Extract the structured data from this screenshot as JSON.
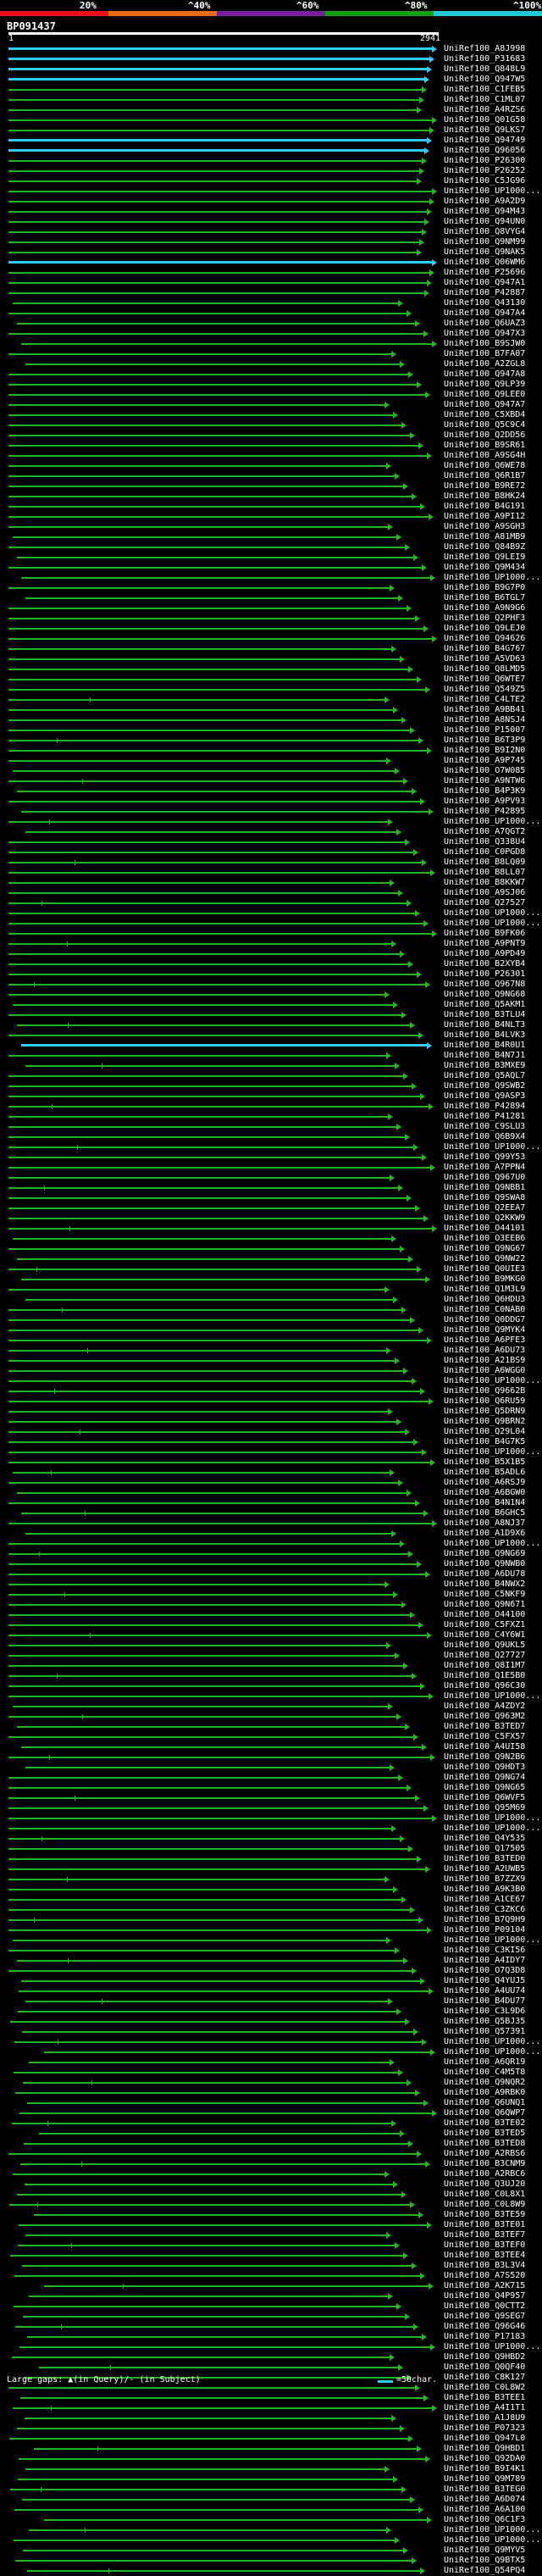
{
  "legend": {
    "labels": [
      "20%",
      "^40%",
      "^60%",
      "^80%",
      "^100%"
    ],
    "colors": [
      "#e8101a",
      "#e8700a",
      "#7a1fa0",
      "#15a015",
      "#22c8d8"
    ]
  },
  "query": {
    "id": "BP091437",
    "start": "1",
    "end": "2941"
  },
  "hits": [
    "UniRef100_A8J998",
    "UniRef100_P31683",
    "UniRef100_Q848L9",
    "UniRef100_Q947W5",
    "UniRef100_C1FEB5",
    "UniRef100_C1ML07",
    "UniRef100_A4RZS6",
    "UniRef100_Q01G58",
    "UniRef100_Q9LKS7",
    "UniRef100_Q94749",
    "UniRef100_Q96056",
    "UniRef100_P26300",
    "UniRef100_P26252",
    "UniRef100_C5JG96",
    "UniRef100_UP1000...",
    "UniRef100_A9A2D9",
    "UniRef100_Q94M43",
    "UniRef100_Q94UN0",
    "UniRef100_Q8VYG4",
    "UniRef100_Q9NM99",
    "UniRef100_Q9NAK5",
    "UniRef100_Q06WM6",
    "UniRef100_P25696",
    "UniRef100_Q947A1",
    "UniRef100_P42887",
    "UniRef100_Q43130",
    "UniRef100_Q947A4",
    "UniRef100_Q6UAZ3",
    "UniRef100_Q947X3",
    "UniRef100_B9SJW0",
    "UniRef100_B7FA07",
    "UniRef100_A2ZGL8",
    "UniRef100_Q947A8",
    "UniRef100_Q9LP39",
    "UniRef100_Q9LEE0",
    "UniRef100_Q947A7",
    "UniRef100_C5XBD4",
    "UniRef100_Q5C9C4",
    "UniRef100_Q2DD56",
    "UniRef100_B9SR61",
    "UniRef100_A9SG4H",
    "UniRef100_Q6WE78",
    "UniRef100_Q6R1B7",
    "UniRef100_B9RE72",
    "UniRef100_B8HK24",
    "UniRef100_B4G191",
    "UniRef100_A9PI12",
    "UniRef100_A9SGH3",
    "UniRef100_A81MB9",
    "UniRef100_Q84B9Z",
    "UniRef100_Q9LEI9",
    "UniRef100_Q9M434",
    "UniRef100_UP1000...",
    "UniRef100_B9G7P0",
    "UniRef100_B6TGL7",
    "UniRef100_A9N9G6",
    "UniRef100_Q2PHF3",
    "UniRef100_Q9LEJ0",
    "UniRef100_Q94626",
    "UniRef100_B4G767",
    "UniRef100_A5VD63",
    "UniRef100_Q8LMD5",
    "UniRef100_Q6WTE7",
    "UniRef100_Q549Z5",
    "UniRef100_C4LTE2",
    "UniRef100_A9BB41",
    "UniRef100_A8NSJ4",
    "UniRef100_P15007",
    "UniRef100_B6T3P9",
    "UniRef100_B9I2N0",
    "UniRef100_A9P745",
    "UniRef100_O7W085",
    "UniRef100_A9NTW6",
    "UniRef100_B4P3K9",
    "UniRef100_A9PV93",
    "UniRef100_P42895",
    "UniRef100_UP1000...",
    "UniRef100_A7QGT2",
    "UniRef100_Q338U4",
    "UniRef100_C0PGD8",
    "UniRef100_B8LQ09",
    "UniRef100_B8LL07",
    "UniRef100_B8KKW7",
    "UniRef100_A9SJ06",
    "UniRef100_Q27527",
    "UniRef100_UP1000...",
    "UniRef100_UP1000...",
    "UniRef100_B9FK06",
    "UniRef100_A9PNT9",
    "UniRef100_A9PD49",
    "UniRef100_B2XYB4",
    "UniRef100_P26301",
    "UniRef100_Q967N8",
    "UniRef100_Q9NG68",
    "UniRef100_Q5AKM1",
    "UniRef100_B3TLU4",
    "UniRef100_B4NLT3",
    "UniRef100_B4LVK3",
    "UniRef100_B4R0U1",
    "UniRef100_B4N7J1",
    "UniRef100_B3MXE9",
    "UniRef100_Q5AQL7",
    "UniRef100_Q9SWB2",
    "UniRef100_Q9ASP3",
    "UniRef100_P42894",
    "UniRef100_P41281",
    "UniRef100_C9SLU3",
    "UniRef100_Q6B9X4",
    "UniRef100_UP1000...",
    "UniRef100_Q99Y53",
    "UniRef100_A7PPN4",
    "UniRef100_Q967U0",
    "UniRef100_Q9NBB1",
    "UniRef100_Q9SWA8",
    "UniRef100_Q2EEA7",
    "UniRef100_Q2KKW9",
    "UniRef100_O44101",
    "UniRef100_O3EEB6",
    "UniRef100_Q9NG67",
    "UniRef100_Q9NW22",
    "UniRef100_Q0UIE3",
    "UniRef100_B9MKG0",
    "UniRef100_Q1M3L9",
    "UniRef100_Q6HDU3",
    "UniRef100_C0NAB0",
    "UniRef100_Q0DDG7",
    "UniRef100_Q9MYK4",
    "UniRef100_A6PFE3",
    "UniRef100_A6DU73",
    "UniRef100_A21BS9",
    "UniRef100_A6WGG0",
    "UniRef100_UP1000...",
    "UniRef100_Q9662B",
    "UniRef100_Q6RU59",
    "UniRef100_Q5DRN9",
    "UniRef100_Q9BRN2",
    "UniRef100_Q29L04",
    "UniRef100_B4G7K5",
    "UniRef100_UP1000...",
    "UniRef100_B5X1B5",
    "UniRef100_B5ADL6",
    "UniRef100_A6RSJ9",
    "UniRef100_A6BGW0",
    "UniRef100_B4N1N4",
    "UniRef100_B6GHC5",
    "UniRef100_A8NJ37",
    "UniRef100_A1D9X6",
    "UniRef100_UP1000...",
    "UniRef100_Q9NG69",
    "UniRef100_Q9NWB0",
    "UniRef100_A6DU78",
    "UniRef100_B4NWX2",
    "UniRef100_C5NKF9",
    "UniRef100_Q9N671",
    "UniRef100_O44100",
    "UniRef100_C5FXZ1",
    "UniRef100_C4Y6W1",
    "UniRef100_Q9UKL5",
    "UniRef100_Q27727",
    "UniRef100_Q8I1M7",
    "UniRef100_Q1E5B0",
    "UniRef100_Q96C30",
    "UniRef100_UP1000...",
    "UniRef100_A4ZDY2",
    "UniRef100_Q963M2",
    "UniRef100_B3TED7",
    "UniRef100_C5FX57",
    "UniRef100_A4UI58",
    "UniRef100_Q9N2B6",
    "UniRef100_Q9HDT3",
    "UniRef100_Q9NG74",
    "UniRef100_Q9NG65",
    "UniRef100_Q6WVF5",
    "UniRef100_Q95M69",
    "UniRef100_UP1000...",
    "UniRef100_UP1000...",
    "UniRef100_Q4Y535",
    "UniRef100_Q17505",
    "UniRef100_B3TED0",
    "UniRef100_A2UWB5",
    "UniRef100_B7ZZX9",
    "UniRef100_A9K3B0",
    "UniRef100_A1CE67",
    "UniRef100_C3ZKC6",
    "UniRef100_B7Q9H9",
    "UniRef100_P09104",
    "UniRef100_UP1000...",
    "UniRef100_C3KI56",
    "UniRef100_A4IDY7",
    "UniRef100_O7Q3D8",
    "UniRef100_Q4YUJ5",
    "UniRef100_A4UU74",
    "UniRef100_B4DU77",
    "UniRef100_C3L9D6",
    "UniRef100_Q5BJ35",
    "UniRef100_Q57391",
    "UniRef100_UP1000...",
    "UniRef100_UP1000...",
    "UniRef100_A6QR19",
    "UniRef100_C4M5T8",
    "UniRef100_Q9NQR2",
    "UniRef100_A9RBK0",
    "UniRef100_Q6UNQ1",
    "UniRef100_Q6QWP7",
    "UniRef100_B3TE02",
    "UniRef100_B3TED5",
    "UniRef100_B3TED8",
    "UniRef100_A2RBS6",
    "UniRef100_B3CNM9",
    "UniRef100_A2RBC6",
    "UniRef100_Q3UJ20",
    "UniRef100_C0L8X1",
    "UniRef100_C0L8W9",
    "UniRef100_B3TE59",
    "UniRef100_B3TE01",
    "UniRef100_B3TEF7",
    "UniRef100_B3TEF0",
    "UniRef100_B3TEE4",
    "UniRef100_B3L3V4",
    "UniRef100_A7S520",
    "UniRef100_A2K715",
    "UniRef100_Q4P957",
    "UniRef100_Q0CTT2",
    "UniRef100_Q9SEG7",
    "UniRef100_Q96G46",
    "UniRef100_P17183",
    "UniRef100_UP1000...",
    "UniRef100_Q9HBD2",
    "UniRef100_Q0QF40",
    "UniRef100_C8K127",
    "UniRef100_C0L8W2",
    "UniRef100_B3TEE1",
    "UniRef100_A4I1T1",
    "UniRef100_A1J8U9",
    "UniRef100_P07323",
    "UniRef100_Q947L0",
    "UniRef100_Q9HBD1",
    "UniRef100_Q92DA0",
    "UniRef100_B9I4K1",
    "UniRef100_Q9M789",
    "UniRef100_B3TEG0",
    "UniRef100_A6D074",
    "UniRef100_A6A100",
    "UniRef100_Q6C1F3",
    "UniRef100_UP1000...",
    "UniRef100_UP1000...",
    "UniRef100_Q9MYV5",
    "UniRef100_Q9BTX5",
    "UniRef100_Q54PQ4"
  ],
  "footer": {
    "left": "Large gaps: ▲(in Query)/- (in Subject)",
    "right": "=50char."
  }
}
